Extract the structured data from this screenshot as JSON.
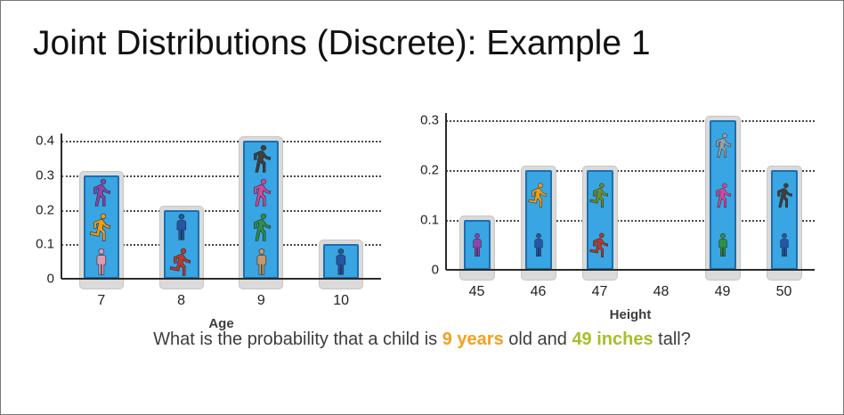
{
  "title": "Joint Distributions (Discrete): Example 1",
  "question": {
    "part1": "What is the probability that a child is ",
    "age_highlight": "9 years",
    "part2": " old and ",
    "height_highlight": "49 inches",
    "part3": " tall?",
    "age_color": "#f5a01e",
    "height_color": "#a8bf29"
  },
  "colors": {
    "bar_fill": "#39a5e2",
    "bar_border": "#1b6fae",
    "platform": "#dadada",
    "gridline": "#4a4a4a"
  },
  "chart_data": [
    {
      "type": "bar",
      "name": "age-distribution",
      "title": "",
      "xlabel": "Age",
      "ylabel": "",
      "categories": [
        "7",
        "8",
        "9",
        "10"
      ],
      "values": [
        0.3,
        0.2,
        0.4,
        0.1
      ],
      "ylim": [
        0,
        0.4
      ],
      "yticks": [
        "0",
        "0.1",
        "0.2",
        "0.3",
        "0.4"
      ],
      "grid": "horizontal-dotted",
      "icons": [
        [
          {
            "pose": "walk",
            "color": "#8e44ad"
          },
          {
            "pose": "run",
            "color": "#f39c12"
          },
          {
            "pose": "stand",
            "color": "#dc9cb6"
          }
        ],
        [
          {
            "pose": "stand",
            "color": "#2456a8"
          },
          {
            "pose": "run",
            "color": "#c0392b"
          }
        ],
        [
          {
            "pose": "walk",
            "color": "#3f3f3f"
          },
          {
            "pose": "walk",
            "color": "#d8459c"
          },
          {
            "pose": "walk",
            "color": "#2f8f46"
          },
          {
            "pose": "stand",
            "color": "#c49a6c"
          }
        ],
        [
          {
            "pose": "stand",
            "color": "#2456a8"
          }
        ]
      ]
    },
    {
      "type": "bar",
      "name": "height-distribution",
      "title": "",
      "xlabel": "Height",
      "ylabel": "",
      "categories": [
        "45",
        "46",
        "47",
        "48",
        "49",
        "50"
      ],
      "values": [
        0.1,
        0.2,
        0.2,
        0,
        0.3,
        0.2
      ],
      "ylim": [
        0,
        0.3
      ],
      "yticks": [
        "0",
        "0.1",
        "0.2",
        "0.3"
      ],
      "grid": "horizontal-dotted",
      "icons": [
        [
          {
            "pose": "stand",
            "color": "#8e44ad"
          }
        ],
        [
          {
            "pose": "run",
            "color": "#f39c12"
          },
          {
            "pose": "stand",
            "color": "#2456a8"
          }
        ],
        [
          {
            "pose": "run",
            "color": "#6b8e23"
          },
          {
            "pose": "run",
            "color": "#b03a2e"
          }
        ],
        [],
        [
          {
            "pose": "walk",
            "color": "#98a0a8"
          },
          {
            "pose": "walk",
            "color": "#d8459c"
          },
          {
            "pose": "stand",
            "color": "#2f8f46"
          }
        ],
        [
          {
            "pose": "walk",
            "color": "#3f3f3f"
          },
          {
            "pose": "stand",
            "color": "#2456a8"
          }
        ]
      ]
    }
  ]
}
